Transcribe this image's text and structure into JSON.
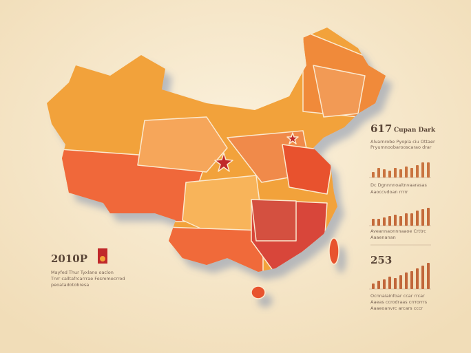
{
  "left_panel": {
    "title": "2010P",
    "lines": [
      "Mayfed Thur Tyxlano oaclon",
      "Tnrr calltafrcarrrae Fesmmecrrod",
      "peoatadotobresa"
    ]
  },
  "right_panel": {
    "blocks": [
      {
        "title": "617",
        "subtitle": "Cupan Dark",
        "lines": [
          "Alvarnrobe Pyopla ciu Ottaer",
          "Pryumnoobarooscarao drar"
        ],
        "bars": [
          8,
          14,
          12,
          10,
          14,
          12,
          16,
          14,
          18,
          22,
          22
        ],
        "color": "#c9733f"
      },
      {
        "lines": [
          "Dc Dgnnnnoaitnvaarasas",
          "Aaoccvdoan rrrrr"
        ],
        "bars": [
          10,
          10,
          12,
          14,
          16,
          14,
          18,
          18,
          22,
          24,
          26
        ],
        "notes": [
          "Aveannaonnnaaoe Crttrc",
          "Aaaenanan"
        ],
        "color": "#c46a3a"
      },
      {
        "title": "253",
        "bars": [
          8,
          12,
          14,
          18,
          16,
          20,
          24,
          26,
          30,
          34,
          38
        ],
        "notes": [
          "Ocnnaiainfoar ccar rrcar",
          "Aaeas ccrodraas crrrorrrs",
          "Aaaeoanvrc arcars cccr"
        ],
        "color": "#c1663a"
      }
    ]
  }
}
